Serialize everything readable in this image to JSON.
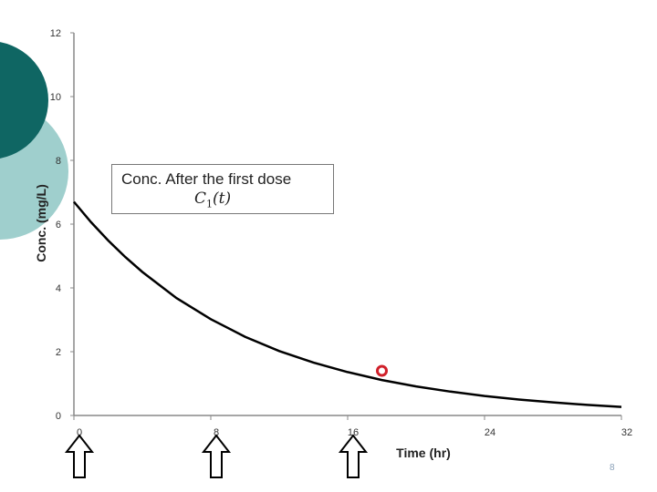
{
  "chart_data": {
    "type": "line",
    "ylabel": "Conc. (mg/L)",
    "xlabel": "Time (hr)",
    "xlim": [
      0,
      32
    ],
    "ylim": [
      0,
      12
    ],
    "x_ticks": [
      0,
      8,
      16,
      24,
      32
    ],
    "y_ticks": [
      0,
      2,
      4,
      6,
      8,
      10,
      12
    ],
    "series": [
      {
        "x": [
          0,
          1,
          2,
          3,
          4,
          6,
          8,
          10,
          12,
          14,
          16,
          18,
          20,
          22,
          24,
          26,
          28,
          30,
          32
        ],
        "y": [
          6.7,
          6.06,
          5.49,
          4.97,
          4.5,
          3.68,
          3.02,
          2.47,
          2.02,
          1.66,
          1.36,
          1.11,
          0.91,
          0.75,
          0.61,
          0.5,
          0.41,
          0.33,
          0.27
        ],
        "color": "#000000"
      }
    ],
    "marker_point": {
      "x": 18,
      "y": 1.4,
      "color": "#d0202a"
    },
    "dose_arrows_at": [
      0,
      8,
      16
    ],
    "annotation": {
      "line1": "Conc. After the first dose",
      "line2": "C",
      "line2_sub": "1",
      "line2_tail": "(t)"
    }
  },
  "page_number": "8",
  "colors": {
    "circle_dark": "#0f6663",
    "circle_light": "#9fcfcd"
  }
}
